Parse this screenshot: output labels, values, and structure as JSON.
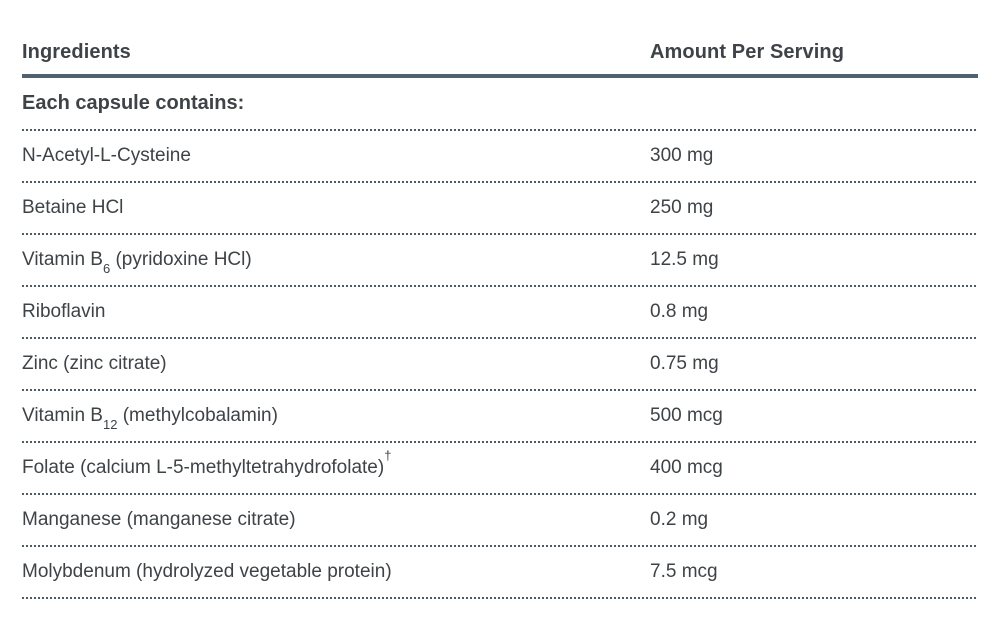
{
  "colors": {
    "background": "#ffffff",
    "text": "#3e4347",
    "thick_rule": "#51616f",
    "dotted_rule": "#4e5a64"
  },
  "table": {
    "col_headers": {
      "ingredients": "Ingredients",
      "amount": "Amount Per Serving"
    },
    "section_header": "Each capsule contains:",
    "rows": [
      {
        "pre": "N-Acetyl-L-Cysteine",
        "sub": "",
        "post": "",
        "sup": "",
        "amount": "300 mg"
      },
      {
        "pre": "Betaine HCl",
        "sub": "",
        "post": "",
        "sup": "",
        "amount": "250 mg"
      },
      {
        "pre": "Vitamin B",
        "sub": "6",
        "post": " (pyridoxine HCl)",
        "sup": "",
        "amount": "12.5 mg"
      },
      {
        "pre": "Riboflavin",
        "sub": "",
        "post": "",
        "sup": "",
        "amount": "0.8 mg"
      },
      {
        "pre": "Zinc (zinc citrate)",
        "sub": "",
        "post": "",
        "sup": "",
        "amount": "0.75 mg"
      },
      {
        "pre": "Vitamin B",
        "sub": "12",
        "post": " (methylcobalamin)",
        "sup": "",
        "amount": "500 mcg"
      },
      {
        "pre": "Folate (calcium L-5-methyltetrahydrofolate)",
        "sub": "",
        "post": "",
        "sup": "†",
        "amount": "400 mcg"
      },
      {
        "pre": "Manganese (manganese citrate)",
        "sub": "",
        "post": "",
        "sup": "",
        "amount": "0.2 mg"
      },
      {
        "pre": "Molybdenum (hydrolyzed vegetable protein)",
        "sub": "",
        "post": "",
        "sup": "",
        "amount": "7.5 mcg"
      }
    ]
  }
}
